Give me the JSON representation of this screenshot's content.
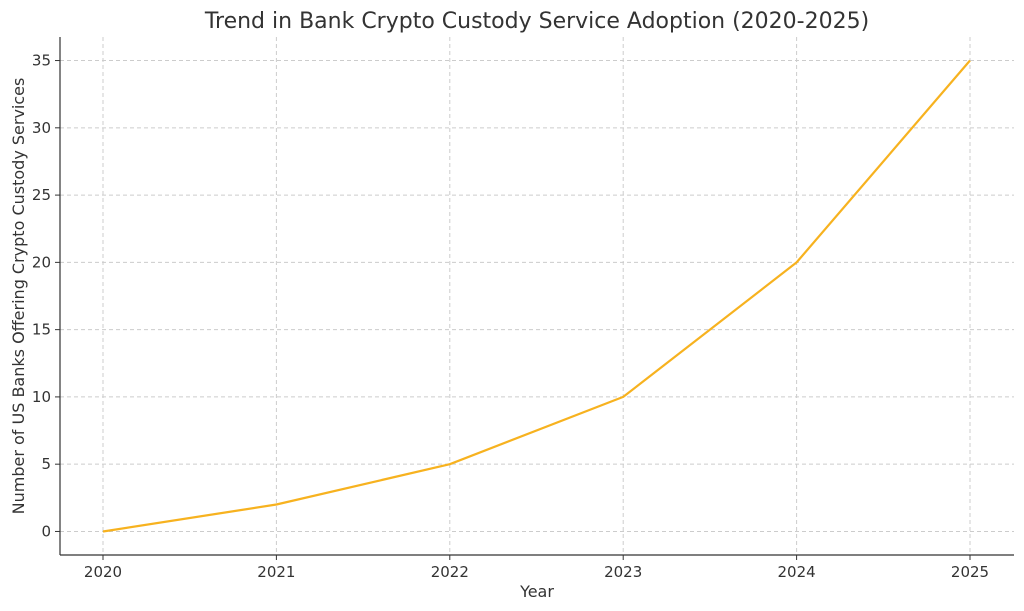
{
  "chart_data": {
    "type": "line",
    "title": "Trend in Bank Crypto Custody Service Adoption (2020-2025)",
    "xlabel": "Year",
    "ylabel": "Number of US Banks Offering Crypto Custody Services",
    "x": [
      "2020",
      "2021",
      "2022",
      "2023",
      "2024",
      "2025"
    ],
    "series": [
      {
        "values": [
          0,
          2,
          5,
          10,
          20,
          35
        ],
        "color": "#f7b21f"
      }
    ],
    "yticks": [
      0,
      5,
      10,
      15,
      20,
      25,
      30,
      35
    ],
    "ylim": [
      -1.75,
      36.75
    ],
    "grid": true,
    "legend": "none"
  }
}
